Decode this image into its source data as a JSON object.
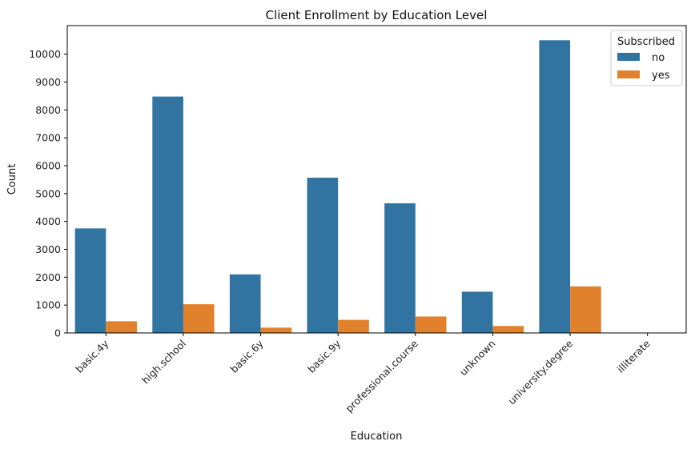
{
  "chart_data": {
    "type": "bar",
    "title": "Client Enrollment by Education Level",
    "xlabel": "Education",
    "ylabel": "Count",
    "categories": [
      "basic.4y",
      "high.school",
      "basic.6y",
      "basic.9y",
      "professional.course",
      "unknown",
      "university.degree",
      "illiterate"
    ],
    "series": [
      {
        "name": "no",
        "color": "#3274a1",
        "values": [
          3750,
          8480,
          2100,
          5570,
          4650,
          1480,
          10500,
          14
        ]
      },
      {
        "name": "yes",
        "color": "#e1812c",
        "values": [
          420,
          1030,
          190,
          470,
          590,
          250,
          1670,
          4
        ]
      }
    ],
    "yticks": [
      0,
      1000,
      2000,
      3000,
      4000,
      5000,
      6000,
      7000,
      8000,
      9000,
      10000
    ],
    "ylim": [
      0,
      11025
    ],
    "grid": false,
    "legend": {
      "title": "Subscribed",
      "position": "top-right"
    }
  }
}
